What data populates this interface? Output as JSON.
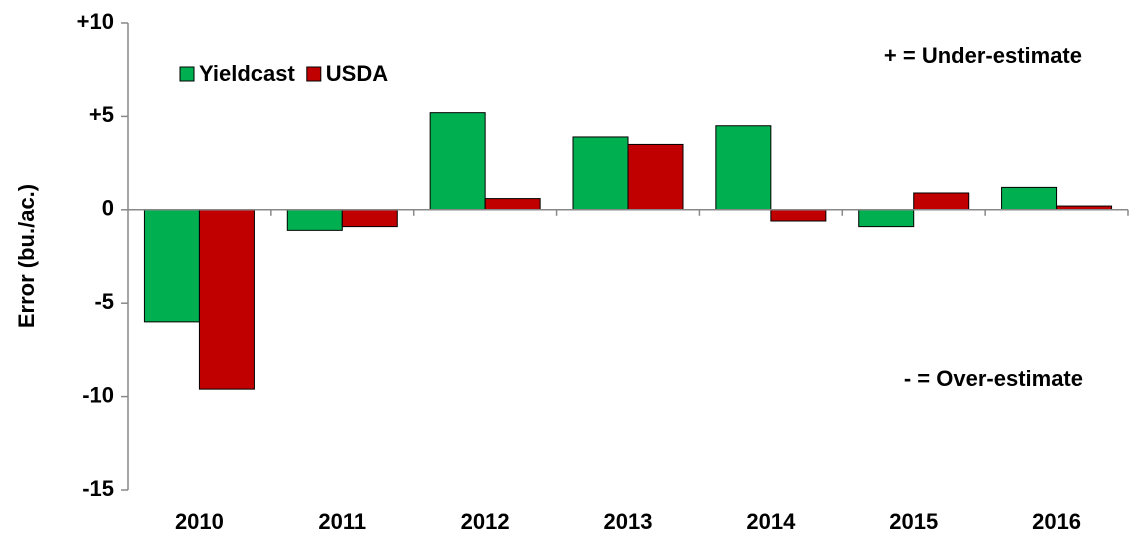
{
  "chart_data": {
    "type": "bar",
    "y_label": "Error (bu./ac.)",
    "annotations": [
      "+ = Under-estimate",
      "- = Over-estimate"
    ],
    "categories": [
      "2010",
      "2011",
      "2012",
      "2013",
      "2014",
      "2015",
      "2016"
    ],
    "series": [
      {
        "name": "Yieldcast",
        "color": "#00b050",
        "values": [
          -6.0,
          -1.1,
          5.2,
          3.9,
          4.5,
          -0.9,
          1.2
        ]
      },
      {
        "name": "USDA",
        "color": "#c00000",
        "values": [
          -9.6,
          -0.9,
          0.6,
          3.5,
          -0.6,
          0.9,
          0.2
        ]
      }
    ],
    "ylim": [
      -15,
      10
    ],
    "yticks": [
      -15,
      -10,
      -5,
      0,
      {
        "value": 5,
        "label": "+5"
      },
      {
        "value": 10,
        "label": "+10"
      }
    ],
    "grid": false,
    "legend": "top-left"
  }
}
